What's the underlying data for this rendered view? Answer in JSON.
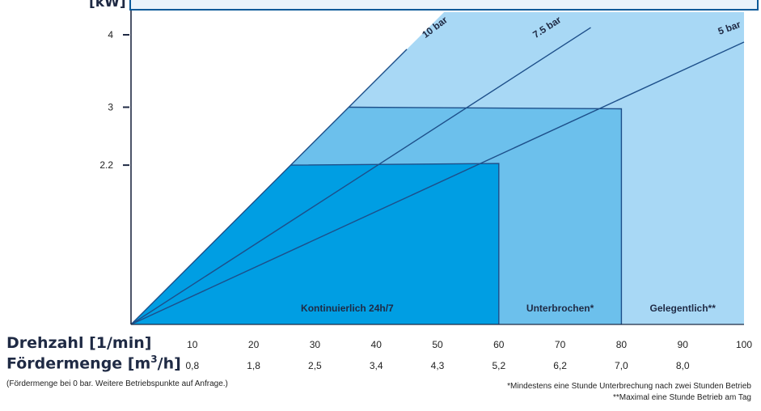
{
  "y_unit_label": "[kW]",
  "rpm_label": "Drehzahl [1/min]",
  "flow_label_main": "Fördermenge [m",
  "flow_label_sup": "3",
  "flow_label_end": "/h]",
  "note_left": "(Fördermenge bei 0 bar. Weitere Betriebspunkte auf Anfrage.)",
  "note_right_1": "*Mindestens eine Stunde Unterbrechung nach zwei Stunden Betrieb",
  "note_right_2": "**Maximal eine Stunde Betrieb am Tag",
  "colors": {
    "continuous": "#009ee3",
    "interrupted": "#6cc0ec",
    "occasional": "#a8d8f5",
    "axis": "#1f2a44",
    "line": "#1d4f8a"
  },
  "chart_data": {
    "type": "area",
    "xlabel": "Drehzahl [1/min]",
    "ylabel": "[kW]",
    "x_ticks": [
      10,
      20,
      30,
      40,
      50,
      60,
      70,
      80,
      90,
      100
    ],
    "x_tick_labels": [
      "10",
      "20",
      "30",
      "40",
      "50",
      "60",
      "70",
      "80",
      "90",
      "100"
    ],
    "flow_tick_labels": [
      "0,8",
      "1,8",
      "2,5",
      "3,4",
      "4,3",
      "5,2",
      "6,2",
      "7,0",
      "8,0"
    ],
    "y_ticks": [
      2.2,
      3,
      4
    ],
    "y_tick_labels": [
      "2.2",
      "3",
      "4"
    ],
    "zones": [
      {
        "name": "Kontinuierlich 24h/7",
        "x_end": 60,
        "power_kw": 2.2
      },
      {
        "name": "Unterbrochen*",
        "x_end": 80,
        "power_kw": 3
      },
      {
        "name": "Gelegentlich**",
        "x_end": 100,
        "power_kw": null
      }
    ],
    "series": [
      {
        "name": "10 bar",
        "points": [
          [
            0,
            0
          ],
          [
            45,
            3.8
          ]
        ]
      },
      {
        "name": "7.5 bar",
        "points": [
          [
            0,
            0
          ],
          [
            75,
            4.1
          ]
        ]
      },
      {
        "name": "5 bar",
        "points": [
          [
            0,
            0
          ],
          [
            100,
            3.9
          ]
        ]
      }
    ]
  }
}
